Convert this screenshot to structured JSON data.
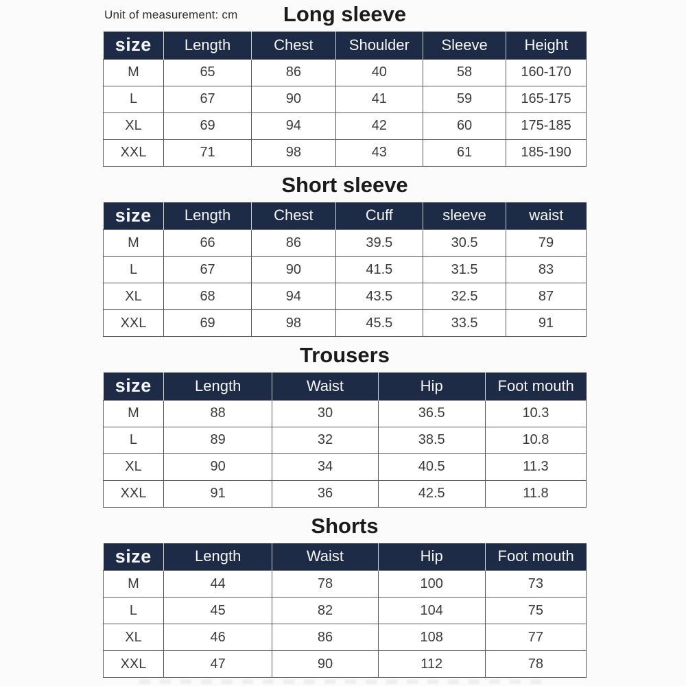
{
  "page": {
    "unit_note": "Unit of measurement: cm"
  },
  "colors": {
    "header_bg": "#1e2b47",
    "header_text": "#f5f7fa",
    "title_text": "#1b1b1b",
    "body_text": "#3a3a3a",
    "grid_line": "#595959",
    "page_bg": "#fbfbfb"
  },
  "chart_data": [
    {
      "type": "table",
      "title": "Long sleeve",
      "columns": [
        "size",
        "Length",
        "Chest",
        "Shoulder",
        "Sleeve",
        "Height"
      ],
      "rows": [
        [
          "M",
          "65",
          "86",
          "40",
          "58",
          "160-170"
        ],
        [
          "L",
          "67",
          "90",
          "41",
          "59",
          "165-175"
        ],
        [
          "XL",
          "69",
          "94",
          "42",
          "60",
          "175-185"
        ],
        [
          "XXL",
          "71",
          "98",
          "43",
          "61",
          "185-190"
        ]
      ]
    },
    {
      "type": "table",
      "title": "Short sleeve",
      "columns": [
        "size",
        "Length",
        "Chest",
        "Cuff",
        "sleeve",
        "waist"
      ],
      "rows": [
        [
          "M",
          "66",
          "86",
          "39.5",
          "30.5",
          "79"
        ],
        [
          "L",
          "67",
          "90",
          "41.5",
          "31.5",
          "83"
        ],
        [
          "XL",
          "68",
          "94",
          "43.5",
          "32.5",
          "87"
        ],
        [
          "XXL",
          "69",
          "98",
          "45.5",
          "33.5",
          "91"
        ]
      ]
    },
    {
      "type": "table",
      "title": "Trousers",
      "columns": [
        "size",
        "Length",
        "Waist",
        "Hip",
        "Foot mouth"
      ],
      "rows": [
        [
          "M",
          "88",
          "30",
          "36.5",
          "10.3"
        ],
        [
          "L",
          "89",
          "32",
          "38.5",
          "10.8"
        ],
        [
          "XL",
          "90",
          "34",
          "40.5",
          "11.3"
        ],
        [
          "XXL",
          "91",
          "36",
          "42.5",
          "11.8"
        ]
      ]
    },
    {
      "type": "table",
      "title": "Shorts",
      "columns": [
        "size",
        "Length",
        "Waist",
        "Hip",
        "Foot mouth"
      ],
      "rows": [
        [
          "M",
          "44",
          "78",
          "100",
          "73"
        ],
        [
          "L",
          "45",
          "82",
          "104",
          "75"
        ],
        [
          "XL",
          "46",
          "86",
          "108",
          "77"
        ],
        [
          "XXL",
          "47",
          "90",
          "112",
          "78"
        ]
      ]
    }
  ]
}
